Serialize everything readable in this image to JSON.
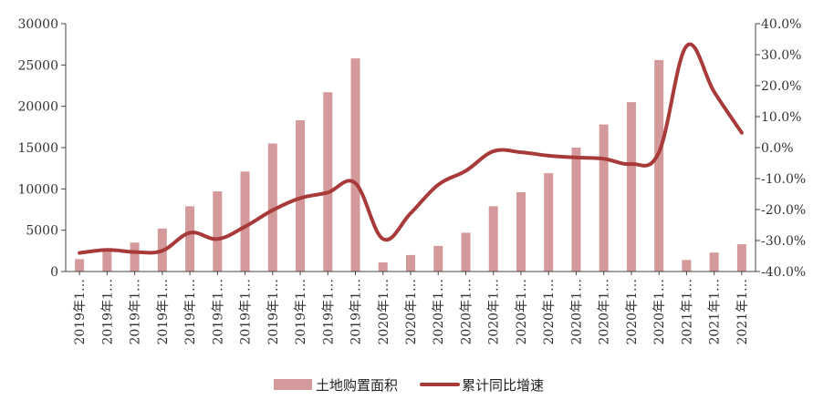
{
  "chart_data": {
    "type": "bar",
    "categories": [
      "2019年1…",
      "2019年1…",
      "2019年1…",
      "2019年1…",
      "2019年1…",
      "2019年1…",
      "2019年1…",
      "2019年1…",
      "2019年1…",
      "2019年1…",
      "2019年1…",
      "2020年1…",
      "2020年1…",
      "2020年1…",
      "2020年1…",
      "2020年1…",
      "2020年1…",
      "2020年1…",
      "2020年1…",
      "2020年1…",
      "2020年1…",
      "2020年1…",
      "2021年1…",
      "2021年1…",
      "2021年1…"
    ],
    "series": [
      {
        "name": "土地购置面积",
        "type": "bar",
        "axis": "left",
        "color": "#d4999a",
        "values": [
          1500,
          2600,
          3500,
          5200,
          7900,
          9700,
          12100,
          15500,
          18300,
          21700,
          25800,
          1100,
          2000,
          3100,
          4700,
          7900,
          9600,
          11900,
          15000,
          17800,
          20500,
          25600,
          1400,
          2300,
          3300
        ]
      },
      {
        "name": "累计同比增速",
        "type": "line",
        "axis": "right",
        "color": "#a83a3a",
        "values": [
          -34.0,
          -33.0,
          -33.7,
          -33.3,
          -27.5,
          -29.5,
          -25.5,
          -20.2,
          -16.3,
          -14.5,
          -11.5,
          -29.5,
          -21.2,
          -12.0,
          -7.5,
          -1.2,
          -1.5,
          -2.6,
          -3.2,
          -3.6,
          -5.3,
          -1.5,
          32.8,
          18.0,
          4.8
        ]
      }
    ],
    "y_left": {
      "ylim": [
        0,
        30000
      ],
      "ticks": [
        "0",
        "5000",
        "10000",
        "15000",
        "20000",
        "25000",
        "30000"
      ]
    },
    "y_right": {
      "ylim": [
        -40,
        40
      ],
      "ticks": [
        "-40.0%",
        "-30.0%",
        "-20.0%",
        "-10.0%",
        "0.0%",
        "10.0%",
        "20.0%",
        "30.0%",
        "40.0%"
      ]
    },
    "legend": {
      "placement": "bottom-center",
      "entries": [
        "土地购置面积",
        "累计同比增速"
      ]
    },
    "grid": false
  }
}
